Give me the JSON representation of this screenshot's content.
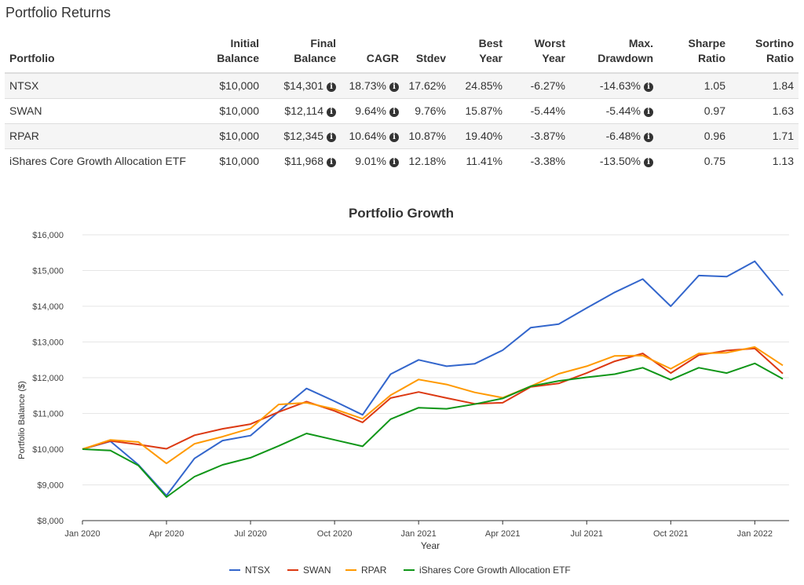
{
  "page": {
    "title": "Portfolio Returns",
    "info_icon": "info-circle-icon"
  },
  "table": {
    "headers": [
      {
        "line1": "",
        "line2": "Portfolio"
      },
      {
        "line1": "Initial",
        "line2": "Balance"
      },
      {
        "line1": "Final",
        "line2": "Balance"
      },
      {
        "line1": "",
        "line2": "CAGR"
      },
      {
        "line1": "",
        "line2": "Stdev"
      },
      {
        "line1": "Best",
        "line2": "Year"
      },
      {
        "line1": "Worst",
        "line2": "Year"
      },
      {
        "line1": "Max.",
        "line2": "Drawdown"
      },
      {
        "line1": "Sharpe",
        "line2": "Ratio"
      },
      {
        "line1": "Sortino",
        "line2": "Ratio"
      }
    ],
    "rows": [
      {
        "portfolio": "NTSX",
        "initial": "$10,000",
        "final": "$14,301",
        "cagr": "18.73%",
        "stdev": "17.62%",
        "best": "24.85%",
        "worst": "-6.27%",
        "maxdd": "-14.63%",
        "sharpe": "1.05",
        "sortino": "1.84"
      },
      {
        "portfolio": "SWAN",
        "initial": "$10,000",
        "final": "$12,114",
        "cagr": "9.64%",
        "stdev": "9.76%",
        "best": "15.87%",
        "worst": "-5.44%",
        "maxdd": "-5.44%",
        "sharpe": "0.97",
        "sortino": "1.63"
      },
      {
        "portfolio": "RPAR",
        "initial": "$10,000",
        "final": "$12,345",
        "cagr": "10.64%",
        "stdev": "10.87%",
        "best": "19.40%",
        "worst": "-3.87%",
        "maxdd": "-6.48%",
        "sharpe": "0.96",
        "sortino": "1.71"
      },
      {
        "portfolio": "iShares Core Growth Allocation ETF",
        "initial": "$10,000",
        "final": "$11,968",
        "cagr": "9.01%",
        "stdev": "12.18%",
        "best": "11.41%",
        "worst": "-3.38%",
        "maxdd": "-13.50%",
        "sharpe": "0.75",
        "sortino": "1.13"
      }
    ]
  },
  "chart_data": {
    "type": "line",
    "title": "Portfolio Growth",
    "xlabel": "Year",
    "ylabel": "Portfolio Balance ($)",
    "ylim": [
      8000,
      16000
    ],
    "yticks": [
      8000,
      9000,
      10000,
      11000,
      12000,
      13000,
      14000,
      15000,
      16000
    ],
    "ytick_labels": [
      "$8,000",
      "$9,000",
      "$10,000",
      "$11,000",
      "$12,000",
      "$13,000",
      "$14,000",
      "$15,000",
      "$16,000"
    ],
    "xtick_labels": [
      "Jan 2020",
      "Apr 2020",
      "Jul 2020",
      "Oct 2020",
      "Jan 2021",
      "Apr 2021",
      "Jul 2021",
      "Oct 2021",
      "Jan 2022"
    ],
    "xtick_month_index": [
      0,
      3,
      6,
      9,
      12,
      15,
      18,
      21,
      24
    ],
    "month_index": [
      0,
      1,
      2,
      3,
      4,
      5,
      6,
      7,
      8,
      9,
      10,
      11,
      12,
      13,
      14,
      15,
      16,
      17,
      18,
      19,
      20,
      21,
      22,
      23,
      24,
      25
    ],
    "grid": true,
    "legend_position": "bottom",
    "series": [
      {
        "name": "NTSX",
        "color": "#3366cc",
        "values": [
          10000,
          10220,
          9560,
          8700,
          9740,
          10240,
          10380,
          11050,
          11700,
          11340,
          10960,
          12100,
          12500,
          12320,
          12390,
          12770,
          13400,
          13500,
          13950,
          14390,
          14760,
          14000,
          14860,
          14830,
          15260,
          14301
        ]
      },
      {
        "name": "SWAN",
        "color": "#dc3912",
        "values": [
          10000,
          10230,
          10130,
          10010,
          10390,
          10570,
          10700,
          11040,
          11330,
          11070,
          10750,
          11430,
          11600,
          11430,
          11270,
          11300,
          11740,
          11840,
          12130,
          12460,
          12680,
          12130,
          12630,
          12760,
          12820,
          12114
        ]
      },
      {
        "name": "RPAR",
        "color": "#ff9900",
        "values": [
          10000,
          10260,
          10200,
          9600,
          10150,
          10350,
          10580,
          11250,
          11300,
          11120,
          10850,
          11510,
          11950,
          11810,
          11590,
          11440,
          11760,
          12110,
          12320,
          12610,
          12620,
          12250,
          12680,
          12700,
          12860,
          12345
        ]
      },
      {
        "name": "iShares Core Growth Allocation ETF",
        "color": "#109618",
        "values": [
          10000,
          9960,
          9540,
          8660,
          9230,
          9560,
          9760,
          10090,
          10440,
          10260,
          10080,
          10840,
          11160,
          11130,
          11260,
          11420,
          11760,
          11910,
          12010,
          12100,
          12280,
          11940,
          12280,
          12130,
          12400,
          11968
        ]
      }
    ]
  }
}
